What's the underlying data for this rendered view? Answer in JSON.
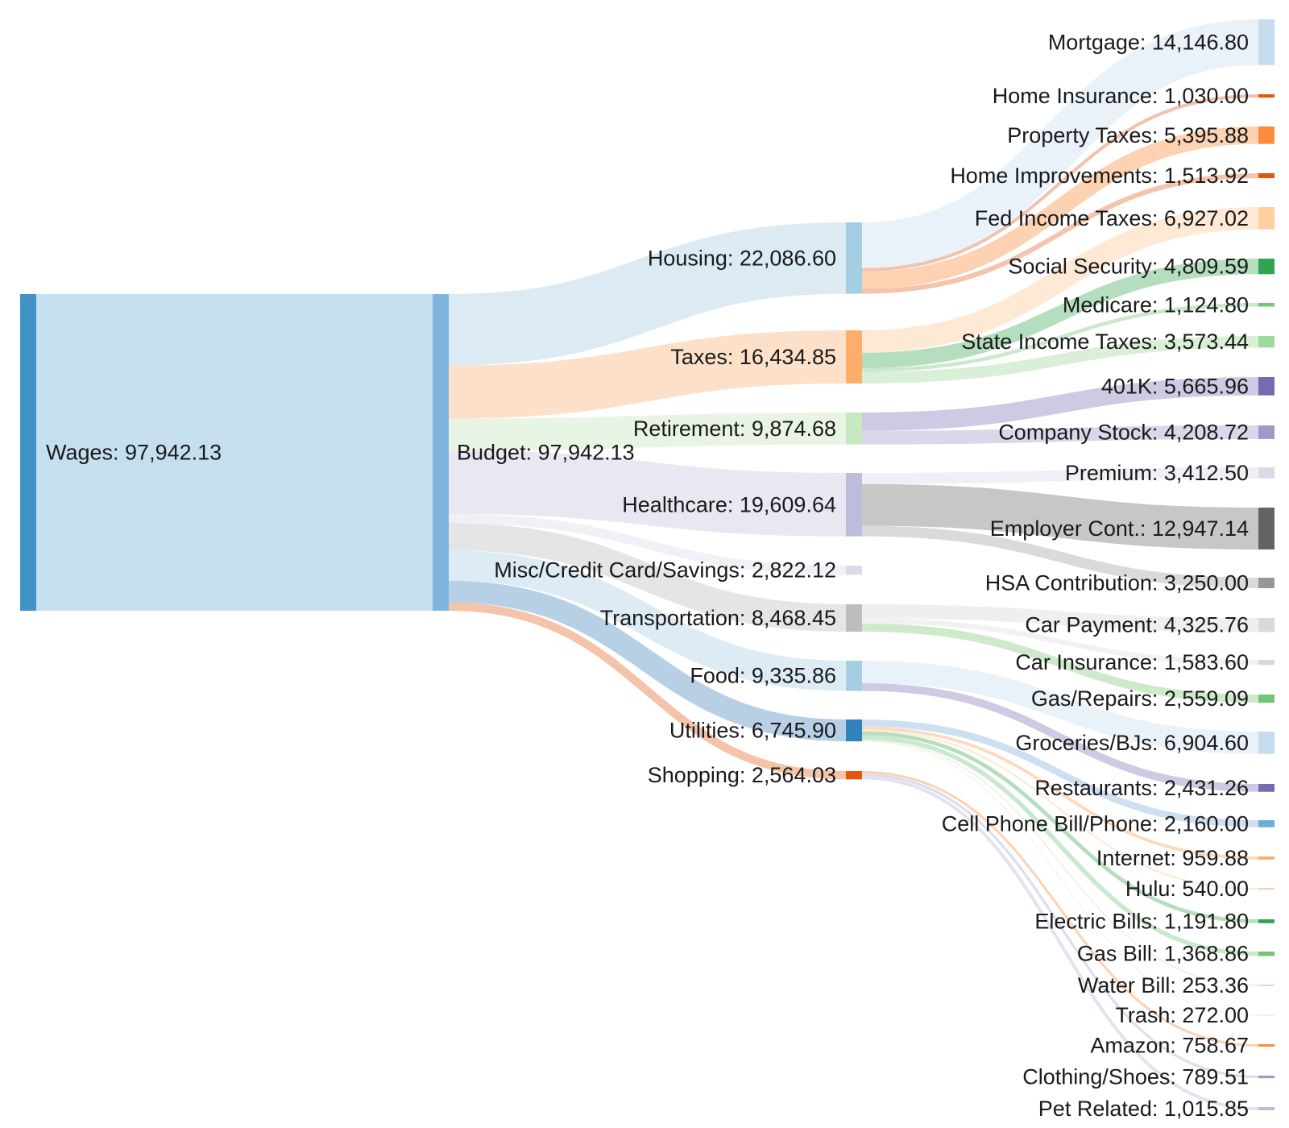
{
  "chart_data": {
    "type": "sankey",
    "nodes": [
      {
        "id": "wages",
        "label": "Wages: 97,942.13",
        "value": 97942.13,
        "color": "#4292c6"
      },
      {
        "id": "budget",
        "label": "Budget: 97,942.13",
        "value": 97942.13,
        "color": "#7fb4dc"
      },
      {
        "id": "housing",
        "label": "Housing: 22,086.60",
        "value": 22086.6,
        "color": "#a6cee3"
      },
      {
        "id": "taxes",
        "label": "Taxes: 16,434.85",
        "value": 16434.85,
        "color": "#fdae6b"
      },
      {
        "id": "retirement",
        "label": "Retirement: 9,874.68",
        "value": 9874.68,
        "color": "#c7e9c0"
      },
      {
        "id": "healthcare",
        "label": "Healthcare: 19,609.64",
        "value": 19609.64,
        "color": "#bcbddc"
      },
      {
        "id": "misc",
        "label": "Misc/Credit Card/Savings: 2,822.12",
        "value": 2822.12,
        "color": "#dadaeb"
      },
      {
        "id": "transportation",
        "label": "Transportation: 8,468.45",
        "value": 8468.45,
        "color": "#bdbdbd"
      },
      {
        "id": "food",
        "label": "Food: 9,335.86",
        "value": 9335.86,
        "color": "#a6cee3"
      },
      {
        "id": "utilities",
        "label": "Utilities: 6,745.90",
        "value": 6745.9,
        "color": "#3182bd"
      },
      {
        "id": "shopping",
        "label": "Shopping: 2,564.03",
        "value": 2564.03,
        "color": "#e6550d"
      },
      {
        "id": "mortgage",
        "label": "Mortgage: 14,146.80",
        "value": 14146.8,
        "color": "#c6dbef"
      },
      {
        "id": "home_ins",
        "label": "Home Insurance: 1,030.00",
        "value": 1030.0,
        "color": "#e6550d"
      },
      {
        "id": "prop_tax",
        "label": "Property Taxes: 5,395.88",
        "value": 5395.88,
        "color": "#fd8d3c"
      },
      {
        "id": "home_imp",
        "label": "Home Improvements: 1,513.92",
        "value": 1513.92,
        "color": "#e6550d"
      },
      {
        "id": "fed_tax",
        "label": "Fed Income Taxes: 6,927.02",
        "value": 6927.02,
        "color": "#fdd0a2"
      },
      {
        "id": "soc_sec",
        "label": "Social Security: 4,809.59",
        "value": 4809.59,
        "color": "#31a354"
      },
      {
        "id": "medicare",
        "label": "Medicare: 1,124.80",
        "value": 1124.8,
        "color": "#74c476"
      },
      {
        "id": "state_tax",
        "label": "State Income Taxes: 3,573.44",
        "value": 3573.44,
        "color": "#a1d99b"
      },
      {
        "id": "k401",
        "label": "401K: 5,665.96",
        "value": 5665.96,
        "color": "#756bb1"
      },
      {
        "id": "comp_stock",
        "label": "Company Stock: 4,208.72",
        "value": 4208.72,
        "color": "#9e9ac8"
      },
      {
        "id": "premium",
        "label": "Premium: 3,412.50",
        "value": 3412.5,
        "color": "#dadaeb"
      },
      {
        "id": "employer",
        "label": "Employer Cont.: 12,947.14",
        "value": 12947.14,
        "color": "#636363"
      },
      {
        "id": "hsa",
        "label": "HSA Contribution: 3,250.00",
        "value": 3250.0,
        "color": "#969696"
      },
      {
        "id": "car_pay",
        "label": "Car Payment: 4,325.76",
        "value": 4325.76,
        "color": "#d9d9d9"
      },
      {
        "id": "car_ins",
        "label": "Car Insurance: 1,583.60",
        "value": 1583.6,
        "color": "#d9d9d9"
      },
      {
        "id": "gas_rep",
        "label": "Gas/Repairs: 2,559.09",
        "value": 2559.09,
        "color": "#74c476"
      },
      {
        "id": "groceries",
        "label": "Groceries/BJs: 6,904.60",
        "value": 6904.6,
        "color": "#c6dbef"
      },
      {
        "id": "restaurants",
        "label": "Restaurants: 2,431.26",
        "value": 2431.26,
        "color": "#756bb1"
      },
      {
        "id": "cell",
        "label": "Cell Phone Bill/Phone: 2,160.00",
        "value": 2160.0,
        "color": "#6baed6"
      },
      {
        "id": "internet",
        "label": "Internet: 959.88",
        "value": 959.88,
        "color": "#fdae6b"
      },
      {
        "id": "hulu",
        "label": "Hulu: 540.00",
        "value": 540.0,
        "color": "#fdd0a2"
      },
      {
        "id": "electric",
        "label": "Electric Bills: 1,191.80",
        "value": 1191.8,
        "color": "#31a354"
      },
      {
        "id": "gas_bill",
        "label": "Gas Bill: 1,368.86",
        "value": 1368.86,
        "color": "#74c476"
      },
      {
        "id": "water",
        "label": "Water Bill: 253.36",
        "value": 253.36,
        "color": "#c7e9c0"
      },
      {
        "id": "trash",
        "label": "Trash: 272.00",
        "value": 272.0,
        "color": "#e8f5e4"
      },
      {
        "id": "amazon",
        "label": "Amazon: 758.67",
        "value": 758.67,
        "color": "#fd8d3c"
      },
      {
        "id": "clothing",
        "label": "Clothing/Shoes: 789.51",
        "value": 789.51,
        "color": "#9e9ac8"
      },
      {
        "id": "pet",
        "label": "Pet Related: 1,015.85",
        "value": 1015.85,
        "color": "#bcbddc"
      }
    ],
    "links": [
      {
        "source": "wages",
        "target": "budget",
        "value": 97942.13,
        "color": "#c6dbef"
      },
      {
        "source": "budget",
        "target": "housing",
        "value": 22086.6,
        "color": "#d6e6f2"
      },
      {
        "source": "budget",
        "target": "taxes",
        "value": 16434.85,
        "color": "#fddbbf"
      },
      {
        "source": "budget",
        "target": "retirement",
        "value": 9874.68,
        "color": "#e5f3df"
      },
      {
        "source": "budget",
        "target": "healthcare",
        "value": 19609.64,
        "color": "#e4e4f0"
      },
      {
        "source": "budget",
        "target": "misc",
        "value": 2822.12,
        "color": "#ededf5"
      },
      {
        "source": "budget",
        "target": "transportation",
        "value": 8468.45,
        "color": "#e0e0e0"
      },
      {
        "source": "budget",
        "target": "food",
        "value": 9335.86,
        "color": "#d7e8f3"
      },
      {
        "source": "budget",
        "target": "utilities",
        "value": 6745.9,
        "color": "#aac8e2"
      },
      {
        "source": "budget",
        "target": "shopping",
        "value": 2564.03,
        "color": "#f2b89a"
      },
      {
        "source": "housing",
        "target": "mortgage",
        "value": 14146.8,
        "color": "#e5eef8"
      },
      {
        "source": "housing",
        "target": "home_ins",
        "value": 1030.0,
        "color": "#efb9a0"
      },
      {
        "source": "housing",
        "target": "prop_tax",
        "value": 5395.88,
        "color": "#fbcaa4"
      },
      {
        "source": "housing",
        "target": "home_imp",
        "value": 1513.92,
        "color": "#f4b99d"
      },
      {
        "source": "taxes",
        "target": "fed_tax",
        "value": 6927.02,
        "color": "#fee5cc"
      },
      {
        "source": "taxes",
        "target": "soc_sec",
        "value": 4809.59,
        "color": "#a8d8b3"
      },
      {
        "source": "taxes",
        "target": "medicare",
        "value": 1124.8,
        "color": "#c0e4c3"
      },
      {
        "source": "taxes",
        "target": "state_tax",
        "value": 3573.44,
        "color": "#d3ecd0"
      },
      {
        "source": "retirement",
        "target": "k401",
        "value": 5665.96,
        "color": "#c5c1de"
      },
      {
        "source": "retirement",
        "target": "comp_stock",
        "value": 4208.72,
        "color": "#d2d0e6"
      },
      {
        "source": "healthcare",
        "target": "premium",
        "value": 3412.5,
        "color": "#ececf4"
      },
      {
        "source": "healthcare",
        "target": "employer",
        "value": 12947.14,
        "color": "#bdbdbd"
      },
      {
        "source": "healthcare",
        "target": "hsa",
        "value": 3250.0,
        "color": "#d4d4d4"
      },
      {
        "source": "transportation",
        "target": "car_pay",
        "value": 4325.76,
        "color": "#ececec"
      },
      {
        "source": "transportation",
        "target": "car_ins",
        "value": 1583.6,
        "color": "#efefef"
      },
      {
        "source": "transportation",
        "target": "gas_rep",
        "value": 2559.09,
        "color": "#c6e6c1"
      },
      {
        "source": "food",
        "target": "groceries",
        "value": 6904.6,
        "color": "#e5eef8"
      },
      {
        "source": "food",
        "target": "restaurants",
        "value": 2431.26,
        "color": "#c5c1de"
      },
      {
        "source": "utilities",
        "target": "cell",
        "value": 2160.0,
        "color": "#c3dbee"
      },
      {
        "source": "utilities",
        "target": "internet",
        "value": 959.88,
        "color": "#fbd4b3"
      },
      {
        "source": "utilities",
        "target": "hulu",
        "value": 540.0,
        "color": "#fde6d0"
      },
      {
        "source": "utilities",
        "target": "electric",
        "value": 1191.8,
        "color": "#a8d8b3"
      },
      {
        "source": "utilities",
        "target": "gas_bill",
        "value": 1368.86,
        "color": "#c0e4c3"
      },
      {
        "source": "utilities",
        "target": "water",
        "value": 253.36,
        "color": "#e0f0dc"
      },
      {
        "source": "utilities",
        "target": "trash",
        "value": 272.0,
        "color": "#eef7eb"
      },
      {
        "source": "shopping",
        "target": "amazon",
        "value": 758.67,
        "color": "#fbcaa4"
      },
      {
        "source": "shopping",
        "target": "clothing",
        "value": 789.51,
        "color": "#d8d6ea"
      },
      {
        "source": "shopping",
        "target": "pet",
        "value": 1015.85,
        "color": "#dedeed"
      }
    ]
  }
}
